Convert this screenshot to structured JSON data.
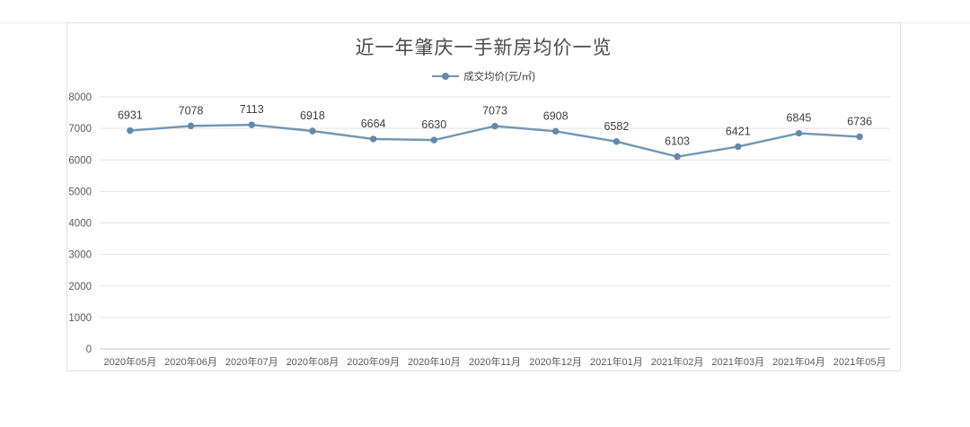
{
  "chart_data": {
    "type": "line",
    "title": "近一年肇庆一手新房均价一览",
    "categories": [
      "2020年05月",
      "2020年06月",
      "2020年07月",
      "2020年08月",
      "2020年09月",
      "2020年10月",
      "2020年11月",
      "2020年12月",
      "2021年01月",
      "2021年02月",
      "2021年03月",
      "2021年04月",
      "2021年05月"
    ],
    "series": [
      {
        "name": "成交均价(元/㎡)",
        "values": [
          6931,
          7078,
          7113,
          6918,
          6664,
          6630,
          7073,
          6908,
          6582,
          6103,
          6421,
          6845,
          6736
        ]
      }
    ],
    "xlabel": "",
    "ylabel": "",
    "ylim": [
      0,
      8000
    ],
    "yticks": [
      0,
      1000,
      2000,
      3000,
      4000,
      5000,
      6000,
      7000,
      8000
    ],
    "grid": "horizontal",
    "legend_position": "top",
    "data_labels": true
  },
  "colors": {
    "line": "#7196b4",
    "marker": "#6289ab",
    "grid": "#e3e3e3",
    "axis": "#c9c9c9",
    "title_text": "#4a4a4a",
    "data_label_text": "#3f3f3f",
    "tick_text": "#595959",
    "border": "#e0e0e0",
    "background": "#ffffff"
  }
}
